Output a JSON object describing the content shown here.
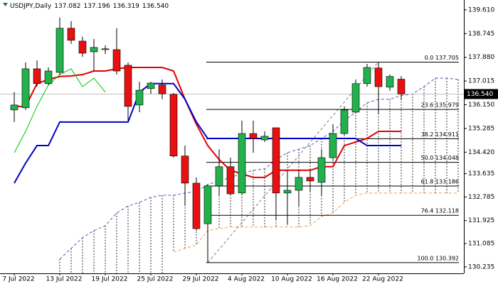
{
  "chart_data": {
    "type": "candlestick",
    "symbol": "USDJPY,Daily",
    "categories": [
      "7 Jul 2022",
      null,
      null,
      null,
      "13 Jul 2022",
      null,
      null,
      null,
      "19 Jul 2022",
      null,
      null,
      null,
      "25 Jul 2022",
      null,
      null,
      null,
      "29 Jul 2022",
      null,
      null,
      null,
      "4 Aug 2022",
      null,
      null,
      null,
      "10 Aug 2022",
      null,
      null,
      null,
      "16 Aug 2022",
      null,
      null,
      null,
      "22 Aug 2022",
      null,
      null,
      null,
      null,
      null,
      null,
      null
    ],
    "open": [
      135.96,
      136.04,
      137.46,
      136.92,
      137.33,
      138.94,
      138.47,
      138.08,
      138.16,
      138.16,
      137.59,
      136.14,
      136.74,
      136.87,
      136.53,
      134.28,
      133.29,
      131.81,
      133.19,
      133.89,
      132.93,
      135.1,
      134.87,
      135.31,
      132.93,
      133.03,
      133.5,
      133.32,
      134.22,
      135.1,
      135.88,
      136.92,
      137.49,
      136.79,
      137.082,
      null,
      null,
      null,
      null,
      null
    ],
    "high": [
      136.61,
      137.69,
      137.77,
      137.51,
      139.33,
      139.2,
      138.63,
      138.55,
      138.32,
      138.94,
      137.69,
      136.99,
      136.99,
      137.07,
      136.58,
      134.66,
      133.5,
      133.24,
      134.53,
      134.22,
      135.57,
      135.57,
      135.18,
      135.31,
      133.76,
      133.76,
      133.76,
      134.53,
      135.44,
      136.09,
      137.07,
      137.64,
      137.71,
      137.25,
      137.196,
      null,
      null,
      null,
      null,
      null
    ],
    "low": [
      135.52,
      135.96,
      136.81,
      136.87,
      137.25,
      138.37,
      137.9,
      137.38,
      138.0,
      137.25,
      135.57,
      135.88,
      136.55,
      136.35,
      134.22,
      132.46,
      131.56,
      130.39,
      132.85,
      132.85,
      132.85,
      134.4,
      134.79,
      131.94,
      131.81,
      132.46,
      132.98,
      132.85,
      134.15,
      135.05,
      135.83,
      136.81,
      135.83,
      136.66,
      136.319,
      null,
      null,
      null,
      null,
      null
    ],
    "close": [
      136.14,
      137.46,
      136.92,
      137.38,
      138.94,
      138.5,
      138.03,
      138.24,
      138.19,
      137.38,
      136.09,
      136.68,
      136.94,
      136.55,
      134.28,
      133.29,
      131.63,
      133.19,
      133.89,
      132.9,
      135.1,
      134.92,
      135.0,
      132.93,
      133.03,
      133.5,
      133.37,
      134.22,
      135.1,
      135.96,
      136.92,
      137.51,
      136.81,
      137.18,
      136.54,
      null,
      null,
      null,
      null,
      null
    ],
    "up_color": "#22b14c",
    "down_color": "#e81010",
    "lines": [
      {
        "color": "#e00000",
        "width": 2,
        "values": [
          136.09,
          136.09,
          136.92,
          137.07,
          137.18,
          137.2,
          137.25,
          137.38,
          137.38,
          137.46,
          137.51,
          137.51,
          137.51,
          137.51,
          137.38,
          136.35,
          135.44,
          134.66,
          134.15,
          133.76,
          133.63,
          133.5,
          133.5,
          133.76,
          133.76,
          133.76,
          133.76,
          133.89,
          133.89,
          134.66,
          134.79,
          134.92,
          135.18,
          135.18,
          135.18,
          null,
          null,
          null,
          null,
          null
        ]
      },
      {
        "color": "#0000c8",
        "width": 2,
        "values": [
          133.29,
          134.02,
          134.66,
          134.66,
          135.52,
          135.52,
          135.52,
          135.52,
          135.52,
          135.52,
          135.52,
          136.61,
          136.92,
          136.92,
          136.92,
          136.35,
          135.52,
          134.92,
          134.92,
          134.92,
          134.92,
          134.92,
          134.92,
          134.92,
          134.92,
          134.92,
          134.92,
          134.92,
          134.92,
          134.92,
          134.92,
          134.66,
          134.66,
          134.66,
          134.66,
          null,
          null,
          null,
          null,
          null
        ]
      },
      {
        "color": "#00c800",
        "width": 1,
        "values": [
          134.4,
          135.18,
          136.09,
          136.87,
          137.25,
          137.46,
          136.81,
          137.12,
          136.61,
          null,
          null,
          null,
          null,
          null,
          null,
          null,
          null,
          null,
          null,
          null,
          null,
          null,
          null,
          null,
          null,
          null,
          null,
          null,
          null,
          null,
          null,
          null,
          null,
          null,
          null,
          null,
          null,
          null,
          null,
          null
        ]
      }
    ],
    "cloud": {
      "span_a_color": "#5a5ab4",
      "span_b_color": "#f0a050",
      "hatch_color": "#333333",
      "span_a": [
        null,
        null,
        null,
        null,
        130.52,
        130.91,
        131.3,
        131.56,
        131.74,
        132.2,
        132.46,
        132.59,
        132.77,
        132.85,
        132.85,
        132.93,
        132.98,
        133.24,
        133.37,
        133.5,
        133.63,
        133.76,
        133.81,
        134.15,
        134.4,
        134.53,
        134.66,
        134.92,
        135.18,
        135.57,
        135.88,
        136.22,
        136.35,
        136.35,
        136.48,
        136.55,
        136.81,
        137.12,
        137.12,
        137.07
      ],
      "span_b": [
        null,
        null,
        null,
        null,
        null,
        null,
        null,
        null,
        null,
        null,
        null,
        null,
        null,
        null,
        130.78,
        130.91,
        131.04,
        131.56,
        131.63,
        131.69,
        131.69,
        131.69,
        131.69,
        131.69,
        131.69,
        131.69,
        131.74,
        132.07,
        132.2,
        132.59,
        132.85,
        132.93,
        132.93,
        132.93,
        132.93,
        132.93,
        132.93,
        132.93,
        132.93,
        132.93
      ]
    },
    "fib_levels": [
      {
        "label": "0.0 137.705",
        "value": 137.705
      },
      {
        "label": "23.6 135.979",
        "value": 135.979
      },
      {
        "label": "38.2 134.911",
        "value": 134.911
      },
      {
        "label": "50.0 134.048",
        "value": 134.048
      },
      {
        "label": "61.8 133.186",
        "value": 133.186
      },
      {
        "label": "76.4 132.118",
        "value": 132.118
      },
      {
        "label": "100.0 130.392",
        "value": 130.392
      }
    ],
    "last_price": {
      "value": 136.54,
      "label": "136.540"
    },
    "ylim": [
      130.0,
      139.97
    ],
    "yticks": [
      {
        "value": 139.61,
        "label": "139.610"
      },
      138.745,
      {
        "value": 137.88,
        "label": "137.880"
      },
      137.015,
      {
        "value": 136.15,
        "label": "136.150"
      },
      135.285,
      {
        "value": 134.42,
        "label": "134.420"
      },
      133.635,
      132.785,
      131.925,
      131.085,
      130.235
    ]
  }
}
